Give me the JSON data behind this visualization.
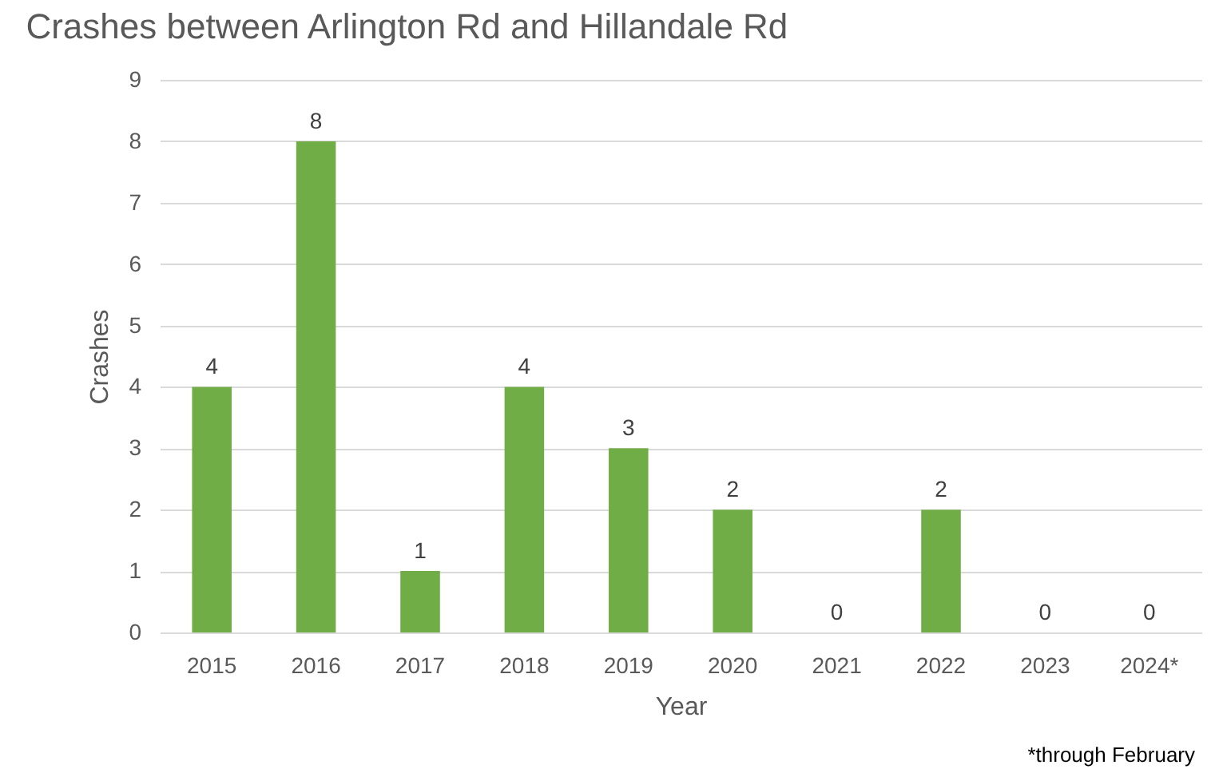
{
  "chart_data": {
    "type": "bar",
    "title": "Crashes between Arlington Rd and Hillandale Rd",
    "xlabel": "Year",
    "ylabel": "Crashes",
    "categories": [
      "2015",
      "2016",
      "2017",
      "2018",
      "2019",
      "2020",
      "2021",
      "2022",
      "2023",
      "2024*"
    ],
    "values": [
      4,
      8,
      1,
      4,
      3,
      2,
      0,
      2,
      0,
      0
    ],
    "color": "#70ad47",
    "ylim": [
      0,
      9
    ],
    "yticks": [
      0,
      1,
      2,
      3,
      4,
      5,
      6,
      7,
      8,
      9
    ],
    "grid": "y",
    "data_labels": true,
    "annotations": [
      "*through February"
    ]
  }
}
